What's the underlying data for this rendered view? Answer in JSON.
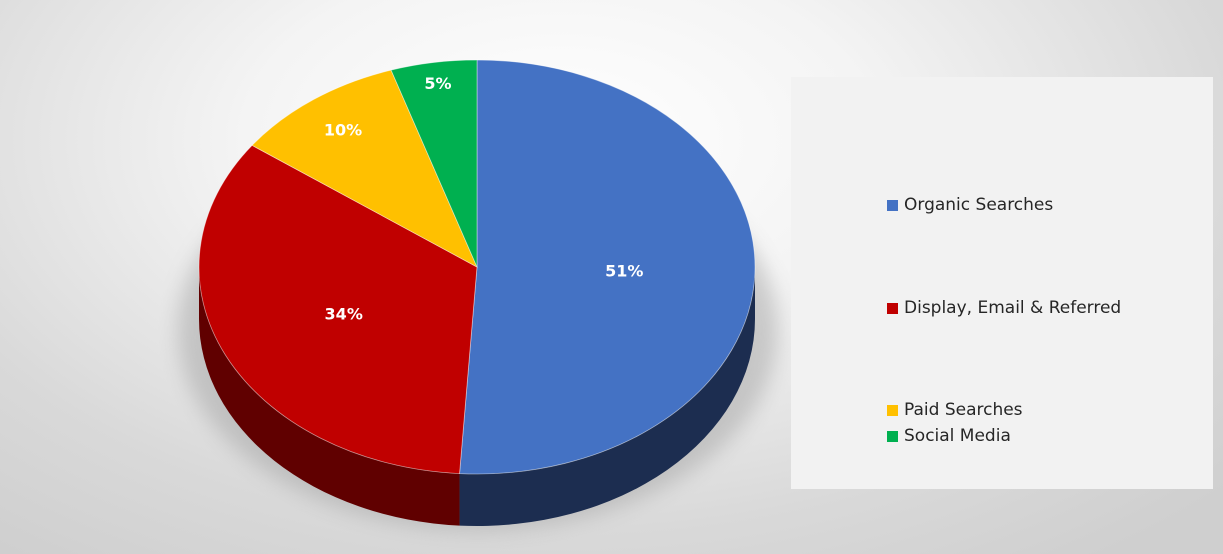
{
  "chart_data": {
    "type": "pie",
    "title": "",
    "categories": [
      "Organic Searches",
      "Display, Email & Referred",
      "Paid Searches",
      "Social Media"
    ],
    "values": [
      51,
      34,
      10,
      5
    ],
    "data_labels": [
      "51%",
      "34%",
      "10%",
      "5%"
    ],
    "colors": [
      "#4472C4",
      "#C00000",
      "#FFC000",
      "#00B050"
    ],
    "side_colors": [
      "#1C2D50",
      "#600000",
      "#7F6000",
      "#005828"
    ],
    "legend_position": "right",
    "style": "3d-pie"
  }
}
